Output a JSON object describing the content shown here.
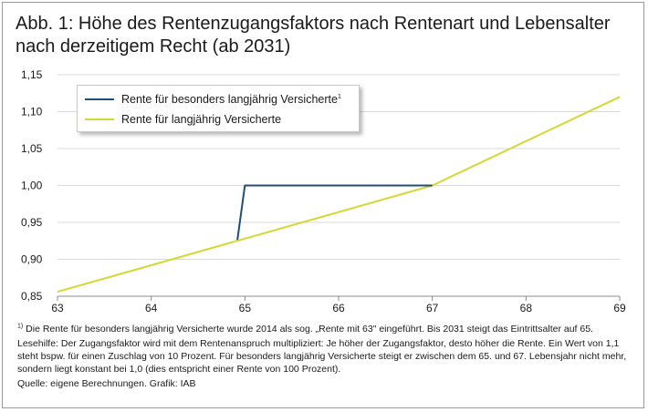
{
  "header": {
    "title_line1": "Abb. 1: Höhe des Rentenzugangsfaktors nach Rentenart und Lebensalter",
    "title_line2": "nach derzeitigem Recht (ab 2031)"
  },
  "chart_data": {
    "type": "line",
    "title": "Abb. 1: Höhe des Rentenzugangsfaktors nach Rentenart und Lebensalter nach derzeitigem Recht (ab 2031)",
    "xlabel": "",
    "ylabel": "",
    "xlim": [
      63,
      69
    ],
    "ylim": [
      0.85,
      1.15
    ],
    "x_ticks": [
      63,
      64,
      65,
      66,
      67,
      68,
      69
    ],
    "x_tick_labels": [
      "63",
      "64",
      "65",
      "66",
      "67",
      "68",
      "69"
    ],
    "y_ticks": [
      0.85,
      0.9,
      0.95,
      1.0,
      1.05,
      1.1,
      1.15
    ],
    "y_tick_labels": [
      "0,85",
      "0,90",
      "0,95",
      "1,00",
      "1,05",
      "1,10",
      "1,15"
    ],
    "grid": "horizontal",
    "legend_position": "top-left",
    "series": [
      {
        "name": "Rente für besonders langjährig Versicherte",
        "name_sup": "1",
        "color": "#1f4e79",
        "points": [
          [
            64.92,
            0.9262
          ],
          [
            65,
            1.0
          ],
          [
            67,
            1.0
          ]
        ]
      },
      {
        "name": "Rente für langjährig Versicherte",
        "name_sup": "",
        "color": "#d4d832",
        "points": [
          [
            63,
            0.856
          ],
          [
            64,
            0.892
          ],
          [
            65,
            0.928
          ],
          [
            66,
            0.964
          ],
          [
            67,
            1.0
          ],
          [
            68,
            1.06
          ],
          [
            69,
            1.12
          ]
        ]
      }
    ]
  },
  "footnotes": {
    "note1_sup": "1)",
    "note1": " Die Rente für besonders langjährig Versicherte wurde 2014 als sog. „Rente mit 63\" eingeführt. Bis 2031 steigt das Eintrittsalter auf 65.",
    "lesehilfe": "Lesehilfe: Der Zugangsfaktor wird mit dem Rentenanspruch multipliziert: Je höher der Zugangsfaktor, desto höher die Rente. Ein Wert von 1,1 steht bspw. für einen Zuschlag von 10 Prozent. Für besonders langjährig Versicherte steigt er zwischen dem 65. und 67. Lebensjahr nicht mehr, sondern liegt konstant bei 1,0 (dies entspricht einer Rente von 100 Prozent).",
    "quelle": "Quelle: eigene Berechnungen. Grafik: IAB"
  }
}
